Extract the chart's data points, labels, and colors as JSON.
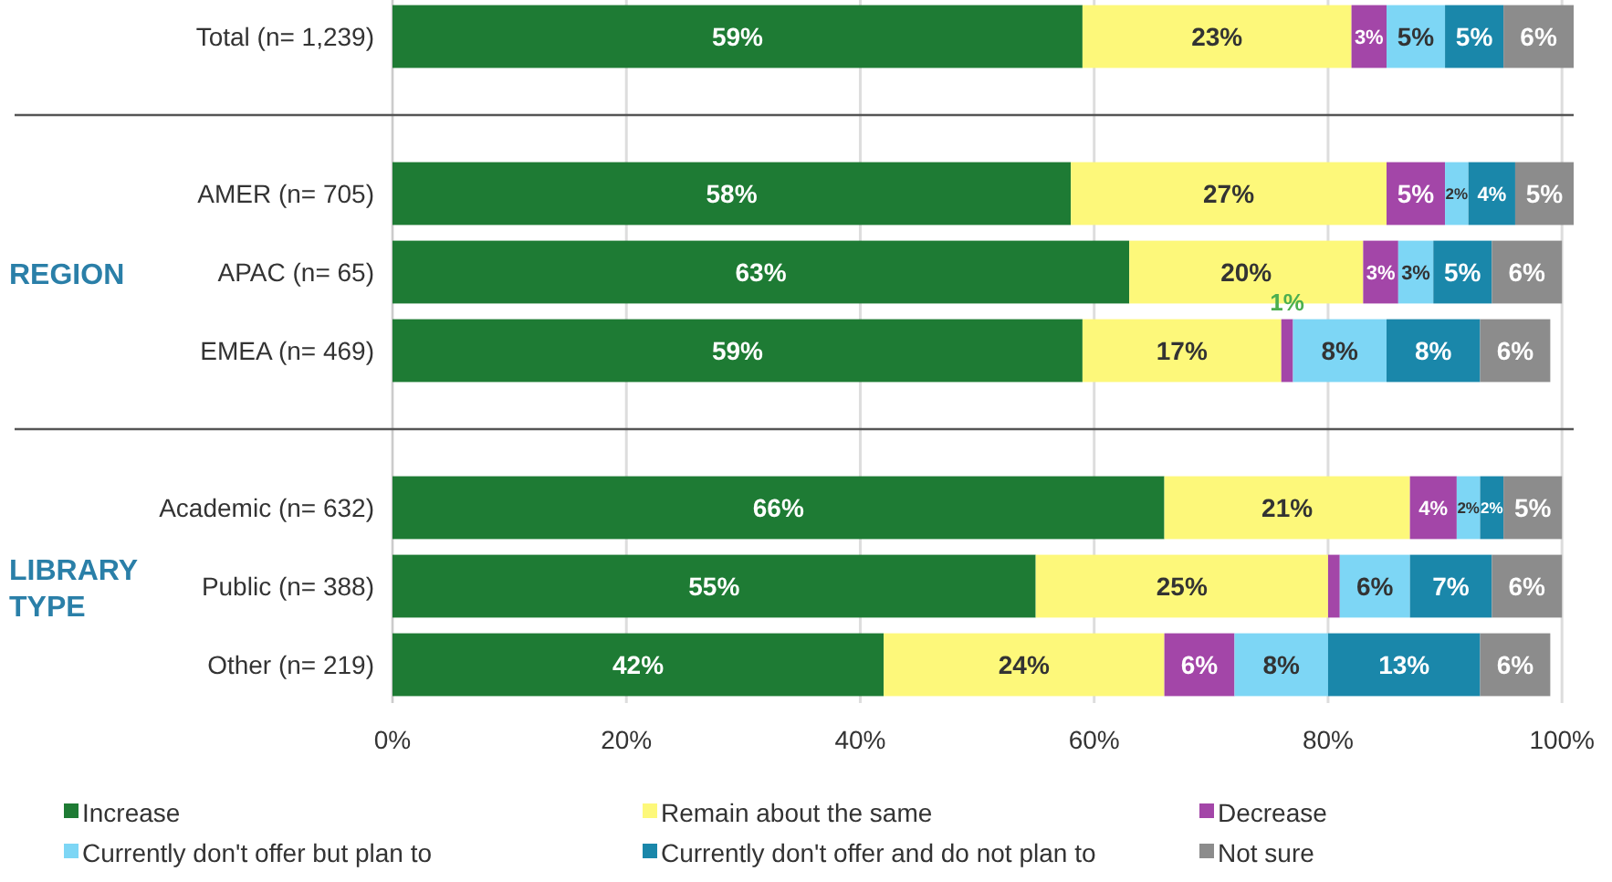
{
  "chart_data": {
    "type": "bar",
    "orientation": "horizontal",
    "stacked": true,
    "categories": [
      "Total (n= 1,239)",
      null,
      "AMER (n= 705)",
      "APAC (n= 65)",
      "EMEA (n= 469)",
      null,
      "Academic (n= 632)",
      "Public (n= 388)",
      "Other (n= 219)"
    ],
    "series": [
      {
        "name": "Increase",
        "color": "#1e7b34",
        "values": [
          59,
          null,
          58,
          63,
          59,
          null,
          66,
          55,
          42
        ],
        "value_labels": [
          "59%",
          null,
          "58%",
          "63%",
          "59%",
          null,
          "66%",
          "55%",
          "42%"
        ]
      },
      {
        "name": "Remain about the same",
        "color": "#fdf87a",
        "values": [
          23,
          null,
          27,
          20,
          17,
          null,
          21,
          25,
          24
        ],
        "value_labels": [
          "23%",
          null,
          "27%",
          "20%",
          "17%",
          null,
          "21%",
          "25%",
          "24%"
        ]
      },
      {
        "name": "Decrease",
        "color": "#a346a8",
        "values": [
          3,
          null,
          5,
          3,
          1,
          null,
          4,
          1,
          6
        ],
        "value_labels": [
          "3%",
          null,
          "5%",
          "3%",
          "1%",
          null,
          "4%",
          null,
          "6%"
        ]
      },
      {
        "name": "Currently don't offer but plan to",
        "color": "#7dd6f5",
        "values": [
          5,
          null,
          2,
          3,
          8,
          null,
          2,
          6,
          8
        ],
        "value_labels": [
          "5%",
          null,
          "2%",
          "3%",
          "8%",
          null,
          "2%",
          "6%",
          "8%"
        ]
      },
      {
        "name": "Currently don't offer and do not plan to",
        "color": "#1a87aa",
        "values": [
          5,
          null,
          4,
          5,
          8,
          null,
          2,
          7,
          13
        ],
        "value_labels": [
          "5%",
          null,
          "4%",
          "5%",
          "8%",
          null,
          "2%",
          "7%",
          "13%"
        ]
      },
      {
        "name": "Not sure",
        "color": "#8c8c8c",
        "values": [
          6,
          null,
          5,
          6,
          6,
          null,
          5,
          6,
          6
        ],
        "value_labels": [
          "6%",
          null,
          "5%",
          "6%",
          "6%",
          null,
          "5%",
          "6%",
          "6%"
        ]
      }
    ],
    "xlim": [
      0,
      101
    ],
    "xticks": [
      {
        "value": 0,
        "label": "0%"
      },
      {
        "value": 20,
        "label": "20%"
      },
      {
        "value": 40,
        "label": "40%"
      },
      {
        "value": 60,
        "label": "60%"
      },
      {
        "value": 80,
        "label": "80%"
      },
      {
        "value": 100,
        "label": "100%"
      }
    ],
    "grid": "x",
    "legend": "bottom",
    "annotations": [
      "REGION",
      "LIBRARY TYPE"
    ]
  }
}
